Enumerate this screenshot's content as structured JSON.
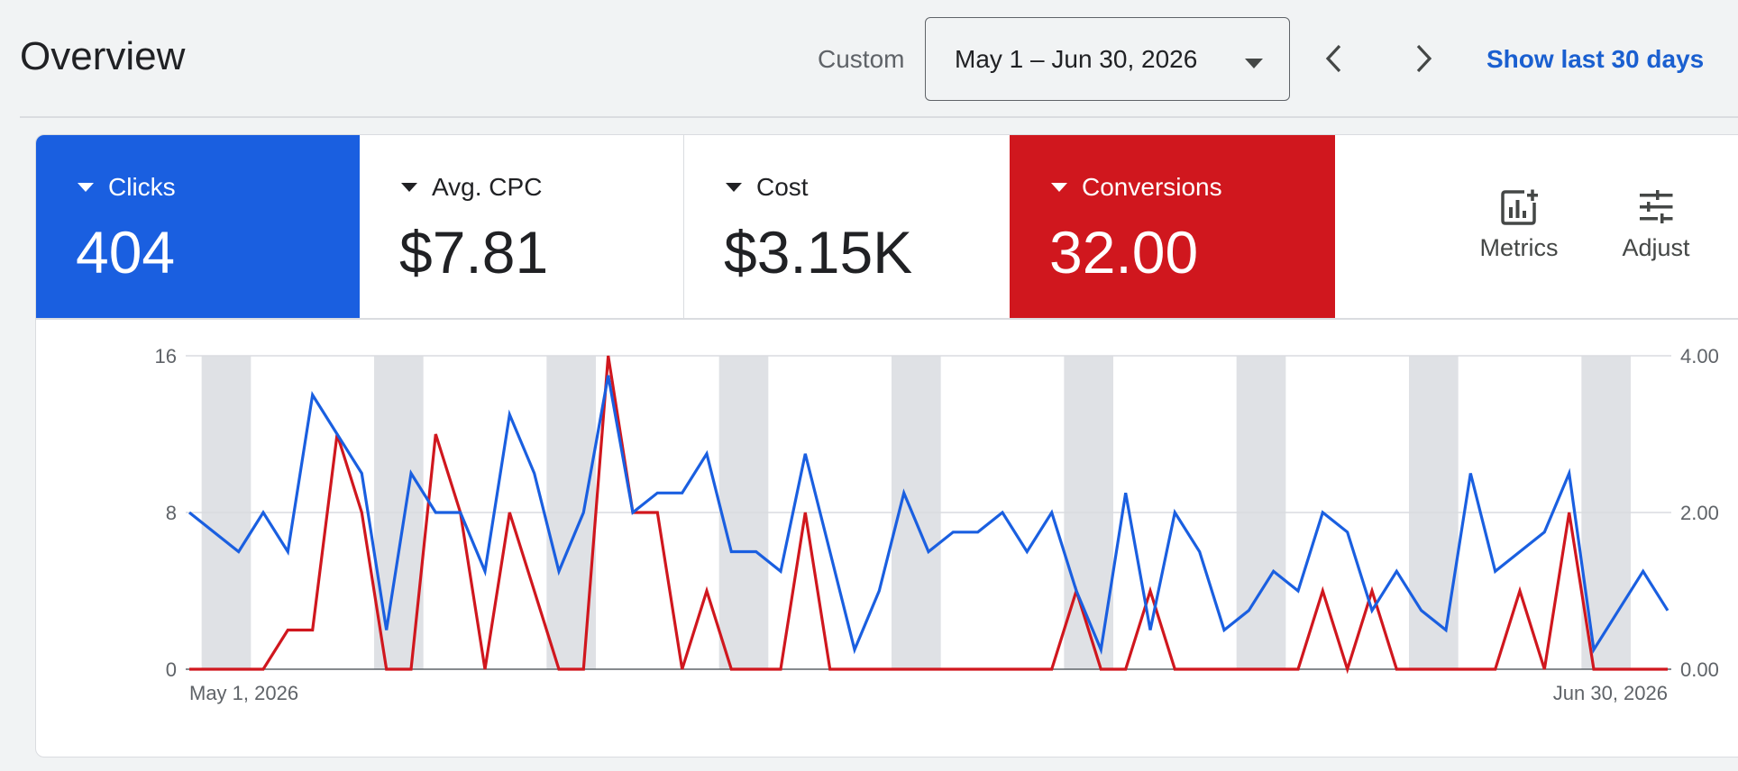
{
  "header": {
    "title": "Overview",
    "range_label": "Custom",
    "date_range": "May 1 – Jun 30, 2026",
    "show_last": "Show last 30 days"
  },
  "tiles": {
    "clicks": {
      "label": "Clicks",
      "value": "404"
    },
    "cpc": {
      "label": "Avg. CPC",
      "value": "$7.81"
    },
    "cost": {
      "label": "Cost",
      "value": "$3.15K"
    },
    "conversions": {
      "label": "Conversions",
      "value": "32.00"
    }
  },
  "tools": {
    "metrics": "Metrics",
    "adjust": "Adjust"
  },
  "colors": {
    "clicks": "#1a5fe0",
    "conversions": "#d0171e",
    "weekend_band": "#dfe1e5"
  },
  "icons": [
    "chevron-left-icon",
    "chevron-right-icon",
    "metrics-icon",
    "adjust-icon"
  ],
  "chart_data": {
    "type": "line",
    "x_start": "May 1, 2026",
    "x_end": "Jun 30, 2026",
    "x_tick_labels": [
      "May 1, 2026",
      "Jun 30, 2026"
    ],
    "left_axis": {
      "ticks": [
        "0",
        "8",
        "16"
      ],
      "ylim": [
        0,
        16
      ]
    },
    "right_axis": {
      "ticks": [
        "0.00",
        "2.00",
        "4.00"
      ],
      "ylim": [
        0,
        4
      ]
    },
    "weekend_days": [
      "May 2",
      "May 9",
      "May 16",
      "May 23",
      "May 30",
      "Jun 6",
      "Jun 13",
      "Jun 20",
      "Jun 27"
    ],
    "grid": true,
    "series": [
      {
        "name": "Clicks",
        "axis": "left",
        "values": [
          8,
          7,
          6,
          8,
          6,
          14,
          12,
          10,
          2,
          10,
          8,
          8,
          5,
          13,
          10,
          5,
          8,
          15,
          8,
          9,
          9,
          11,
          6,
          6,
          5,
          11,
          6,
          1,
          4,
          9,
          6,
          7,
          7,
          8,
          6,
          8,
          4,
          1,
          9,
          2,
          8,
          6,
          2,
          3,
          5,
          4,
          8,
          7,
          3,
          5,
          3,
          2,
          10,
          5,
          6,
          7,
          10,
          1,
          3,
          5,
          3
        ]
      },
      {
        "name": "Conversions",
        "axis": "right",
        "values": [
          0,
          0,
          0,
          0,
          0.5,
          0.5,
          3,
          2,
          0,
          0,
          3,
          2,
          0,
          2,
          1,
          0,
          0,
          4,
          2,
          2,
          0,
          1,
          0,
          0,
          0,
          2,
          0,
          0,
          0,
          0,
          0,
          0,
          0,
          0,
          0,
          0,
          1,
          0,
          0,
          1,
          0,
          0,
          0,
          0,
          0,
          0,
          1,
          0,
          1,
          0,
          0,
          0,
          0,
          0,
          1,
          0,
          2,
          0,
          0,
          0,
          0
        ]
      }
    ]
  }
}
